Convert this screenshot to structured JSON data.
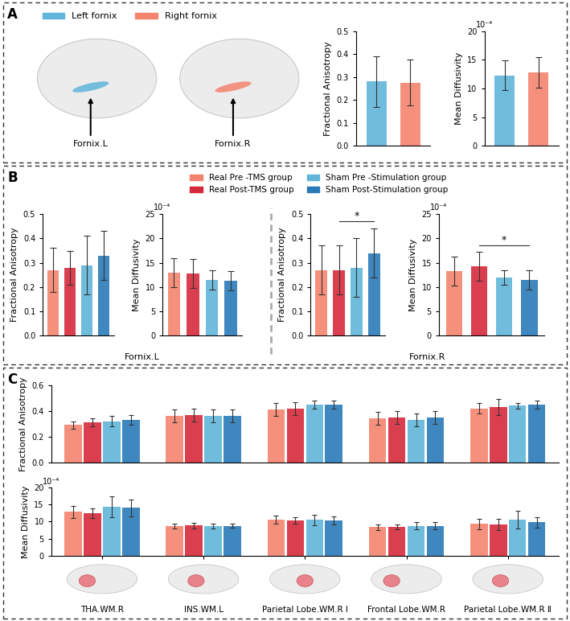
{
  "panel_labels": [
    "A",
    "B",
    "C"
  ],
  "fornix_legend": [
    {
      "name": "Left fornix",
      "color": "#5fb5da"
    },
    {
      "name": "Right fornix",
      "color": "#f4846f"
    }
  ],
  "fornix_brain_labels": [
    "Fornix.L",
    "Fornix.R"
  ],
  "legend": "upper center",
  "legend_entries": [
    {
      "name": "Real Pre -TMS group",
      "color": "#f4846f"
    },
    {
      "name": "Real Post-TMS group",
      "color": "#d62a3c"
    },
    {
      "name": "Sham Pre -Stimulation group",
      "color": "#5fb5da"
    },
    {
      "name": "Sham Post-Stimulation group",
      "color": "#2a7ab8"
    }
  ],
  "chart_data": [
    {
      "type": "bar",
      "ylabel": "Fractional Anisotropy",
      "categories": [
        null,
        null
      ],
      "values": [
        0.28,
        0.275
      ],
      "errors": [
        0.11,
        0.1
      ],
      "colors": [
        "#5fb5da",
        "#f4846f"
      ],
      "ylim": [
        0,
        0.5
      ],
      "yticks": [
        {
          "value": 0,
          "label": "0.0"
        },
        0.1,
        0.2,
        0.3,
        0.4,
        0.5
      ]
    },
    {
      "type": "bar",
      "ylabel": "Mean Diffusivity",
      "scale_note": "10⁻⁴",
      "categories": [
        null,
        null
      ],
      "values": [
        12.3,
        12.8
      ],
      "errors": [
        2.6,
        2.7
      ],
      "colors": [
        "#5fb5da",
        "#f4846f"
      ],
      "ylim": [
        0,
        20
      ],
      "yticks": [
        0,
        5,
        10,
        15,
        20
      ]
    },
    {
      "type": "bar",
      "ylabel": "Fractional Anisotropy",
      "xlabel": "Fornix.L",
      "categories": [
        null,
        null,
        null,
        null
      ],
      "values": [
        0.27,
        0.28,
        0.29,
        0.33
      ],
      "errors": [
        0.09,
        0.07,
        0.12,
        0.1
      ],
      "colors": [
        "#f4846f",
        "#d62a3c",
        "#5fb5da",
        "#2a7ab8"
      ],
      "ylim": [
        0,
        0.5
      ],
      "yticks": [
        {
          "value": 0,
          "label": "0.0"
        },
        0.1,
        0.2,
        0.3,
        0.4,
        0.5
      ]
    },
    {
      "type": "bar",
      "ylabel": "Mean Diffusivity",
      "scale_note": "10⁻⁴",
      "categories": [
        null,
        null,
        null,
        null
      ],
      "values": [
        13.0,
        12.8,
        11.5,
        11.3
      ],
      "errors": [
        3.0,
        3.0,
        2.0,
        2.0
      ],
      "colors": [
        "#f4846f",
        "#d62a3c",
        "#5fb5da",
        "#2a7ab8"
      ],
      "ylim": [
        0,
        25
      ],
      "yticks": [
        0,
        5,
        10,
        15,
        20,
        25
      ]
    },
    {
      "type": "bar",
      "ylabel": "Fractional Anisotropy",
      "xlabel": "Fornix.R",
      "categories": [
        null,
        null,
        null,
        null
      ],
      "values": [
        0.27,
        0.27,
        0.28,
        0.34
      ],
      "errors": [
        0.1,
        0.1,
        0.12,
        0.1
      ],
      "colors": [
        "#f4846f",
        "#d62a3c",
        "#5fb5da",
        "#2a7ab8"
      ],
      "significance": {
        "from": 1,
        "to": 3,
        "label": "*"
      },
      "ylim": [
        0,
        0.5
      ],
      "yticks": [
        {
          "value": 0,
          "label": "0.0"
        },
        0.1,
        0.2,
        0.3,
        0.4,
        0.5
      ]
    },
    {
      "type": "bar",
      "ylabel": "Mean Diffusivity",
      "scale_note": "10⁻⁴",
      "categories": [
        null,
        null,
        null,
        null
      ],
      "values": [
        13.2,
        14.3,
        12.0,
        11.5
      ],
      "errors": [
        3.0,
        3.0,
        1.5,
        2.0
      ],
      "colors": [
        "#f4846f",
        "#d62a3c",
        "#5fb5da",
        "#2a7ab8"
      ],
      "significance": {
        "from": 1,
        "to": 3,
        "label": "*"
      },
      "ylim": [
        0,
        25
      ],
      "yticks": [
        0,
        5,
        10,
        15,
        20,
        25
      ]
    },
    {
      "type": "bar",
      "ylabel": "Fractional Anisotropy",
      "tick_labels": "y",
      "categories": [
        "THA.WM.R",
        "INS.WM.L",
        "Parietal Lobe.WM.R Ⅰ",
        "Frontal Lobe.WM.R",
        "Parietal Lobe.WM.R Ⅱ"
      ],
      "series": [
        {
          "color": "#f4846f",
          "values": [
            0.29,
            0.36,
            0.41,
            0.34,
            0.42
          ],
          "errors": [
            0.03,
            0.05,
            0.05,
            0.05,
            0.04
          ]
        },
        {
          "color": "#d62a3c",
          "values": [
            0.31,
            0.37,
            0.42,
            0.35,
            0.43
          ],
          "errors": [
            0.03,
            0.05,
            0.05,
            0.05,
            0.06
          ]
        },
        {
          "color": "#5fb5da",
          "values": [
            0.32,
            0.36,
            0.45,
            0.33,
            0.44
          ],
          "errors": [
            0.04,
            0.05,
            0.03,
            0.05,
            0.02
          ]
        },
        {
          "color": "#2a7ab8",
          "values": [
            0.33,
            0.36,
            0.45,
            0.35,
            0.45
          ],
          "errors": [
            0.04,
            0.05,
            0.03,
            0.05,
            0.03
          ]
        }
      ],
      "ylim": [
        0,
        0.6
      ],
      "yticks": [
        {
          "value": 0,
          "label": "0.0"
        },
        0.2,
        0.4,
        0.6
      ]
    },
    {
      "type": "bar",
      "ylabel": "Mean Diffusivity",
      "scale_note": "10⁻⁴",
      "categories": [
        "THA.WM.R",
        "INS.WM.L",
        "Parietal Lobe.WM.R Ⅰ",
        "Frontal Lobe.WM.R",
        "Parietal Lobe.WM.R Ⅱ"
      ],
      "series": [
        {
          "color": "#f4846f",
          "values": [
            12.9,
            8.7,
            10.6,
            8.4,
            9.3
          ],
          "errors": [
            1.8,
            0.8,
            1.2,
            0.8,
            1.5
          ]
        },
        {
          "color": "#d62a3c",
          "values": [
            12.4,
            8.9,
            10.4,
            8.5,
            9.2
          ],
          "errors": [
            1.4,
            0.8,
            1.0,
            0.7,
            1.6
          ]
        },
        {
          "color": "#5fb5da",
          "values": [
            14.4,
            8.7,
            10.5,
            8.8,
            10.6
          ],
          "errors": [
            3.0,
            0.7,
            1.5,
            1.0,
            2.5
          ]
        },
        {
          "color": "#2a7ab8",
          "values": [
            14.0,
            8.8,
            10.4,
            8.8,
            9.8
          ],
          "errors": [
            2.5,
            0.6,
            1.2,
            1.0,
            1.5
          ]
        }
      ],
      "ylim": [
        0,
        20
      ],
      "yticks": [
        0,
        5,
        10,
        15,
        20
      ]
    }
  ]
}
